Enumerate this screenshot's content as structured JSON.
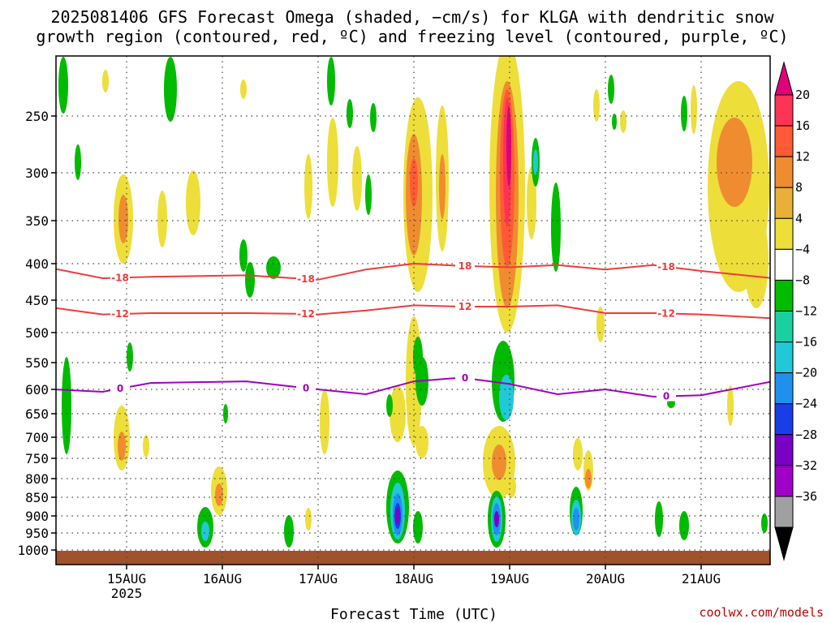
{
  "chart_data": {
    "type": "heatmap",
    "title_lines": [
      "2025081406 GFS Forecast Omega (shaded, −cm/s) for KLGA with dendritic snow",
      "growth region (contoured, red, ºC) and freezing level (contoured, purple, ºC)"
    ],
    "xlabel": "Forecast Time (UTC)",
    "x_ticks": [
      "15AUG",
      "16AUG",
      "17AUG",
      "18AUG",
      "19AUG",
      "20AUG",
      "21AUG"
    ],
    "x_tick_year": "2025",
    "y_ticks": [
      "250",
      "300",
      "350",
      "400",
      "450",
      "500",
      "550",
      "600",
      "650",
      "700",
      "750",
      "800",
      "850",
      "900",
      "950",
      "1000"
    ],
    "y_scale": "log-pressure (hPa)",
    "grid": true,
    "colorbar_ticks": [
      "20",
      "16",
      "12",
      "8",
      "4",
      "−4",
      "−8",
      "−12",
      "−16",
      "−20",
      "−24",
      "−28",
      "−32",
      "−36"
    ],
    "colorbar_colors": [
      "#ff3355",
      "#ff5a35",
      "#f08c30",
      "#e8b038",
      "#eede3a",
      "#ffffff",
      "#00bb00",
      "#1ad0a0",
      "#20c8d8",
      "#2090f0",
      "#1a3de8",
      "#7a00c8",
      "#a000c8",
      "#a0a0a0"
    ],
    "colorbar_end_colors": {
      "top": "#e0007a",
      "bottom": "#000000"
    },
    "contours": [
      {
        "level": "-18",
        "color": "#ee3b3b",
        "labels": [
          "-18",
          "-18",
          "18",
          "-18"
        ],
        "x": [
          "14AUG 06Z",
          "14AUG 18Z",
          "15AUG 06Z",
          "16AUG 06Z",
          "16AUG 18Z",
          "17AUG 00Z",
          "17AUG 12Z",
          "18AUG 00Z",
          "18AUG 12Z",
          "19AUG 00Z",
          "19AUG 12Z",
          "20AUG 00Z",
          "20AUG 12Z",
          "21AUG 00Z",
          "21AUG 18Z"
        ],
        "p": [
          407,
          420,
          418,
          416,
          420,
          422,
          408,
          400,
          403,
          405,
          402,
          408,
          402,
          410,
          420
        ]
      },
      {
        "level": "-12",
        "color": "#ee3b3b",
        "labels": [
          "-12",
          "-12",
          "12",
          "-12"
        ],
        "x": [
          "14AUG 06Z",
          "14AUG 18Z",
          "15AUG 06Z",
          "16AUG 06Z",
          "16AUG 18Z",
          "17AUG 00Z",
          "17AUG 12Z",
          "18AUG 00Z",
          "18AUG 12Z",
          "19AUG 00Z",
          "19AUG 12Z",
          "20AUG 00Z",
          "20AUG 12Z",
          "21AUG 00Z",
          "21AUG 18Z"
        ],
        "p": [
          462,
          472,
          470,
          470,
          471,
          472,
          466,
          458,
          460,
          460,
          458,
          470,
          470,
          472,
          478
        ]
      },
      {
        "level": "0",
        "color": "#a000c0",
        "labels": [
          "0",
          "0",
          "0",
          "0"
        ],
        "x": [
          "14AUG 06Z",
          "14AUG 18Z",
          "15AUG 06Z",
          "16AUG 06Z",
          "16AUG 18Z",
          "17AUG 00Z",
          "17AUG 12Z",
          "18AUG 00Z",
          "18AUG 12Z",
          "19AUG 00Z",
          "19AUG 12Z",
          "20AUG 00Z",
          "20AUG 12Z",
          "21AUG 00Z",
          "21AUG 18Z"
        ],
        "p": [
          600,
          605,
          588,
          585,
          595,
          600,
          610,
          585,
          578,
          590,
          610,
          600,
          615,
          612,
          585
        ]
      }
    ]
  },
  "credit": "coolwx.com/models"
}
